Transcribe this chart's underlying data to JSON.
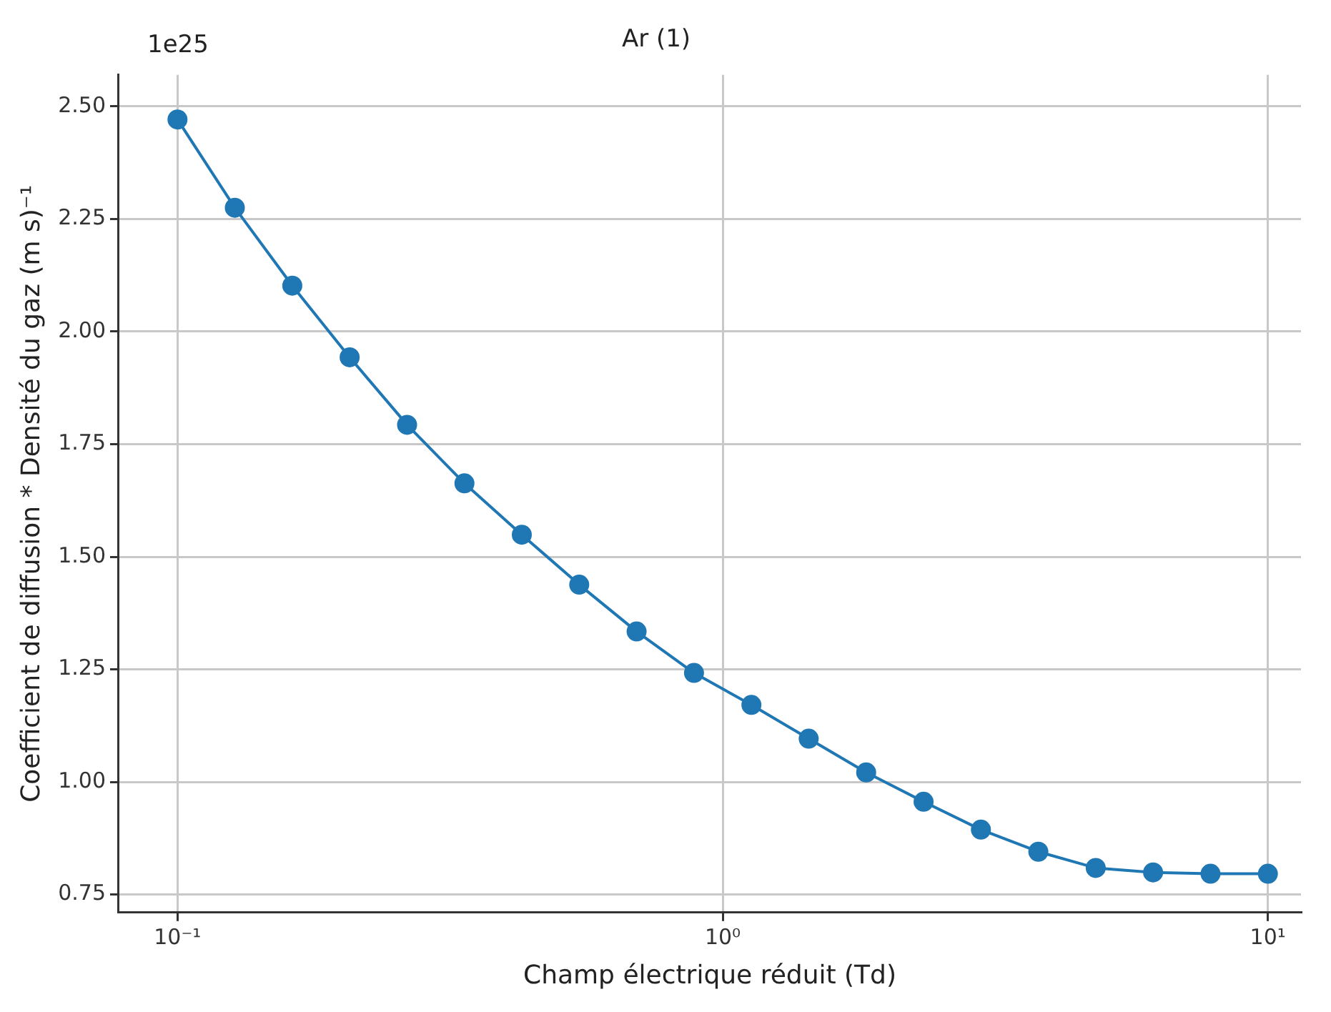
{
  "chart_data": {
    "type": "line",
    "title": "Ar (1)",
    "xlabel": "Champ électrique réduit (Td)",
    "ylabel": "Coefficient de diffusion * Densité du gaz (m s)⁻¹",
    "annotations": [
      "1e25"
    ],
    "log": "x",
    "x": [
      0.1,
      0.1274,
      0.1624,
      0.2069,
      0.2637,
      0.336,
      0.4281,
      0.5456,
      0.6952,
      0.8859,
      1.129,
      1.438,
      1.833,
      2.336,
      2.976,
      3.793,
      4.833,
      6.158,
      7.848,
      10
    ],
    "series": [
      {
        "color": "#1f77b4",
        "values": [
          2.471,
          2.275,
          2.102,
          1.943,
          1.793,
          1.663,
          1.549,
          1.438,
          1.334,
          1.242,
          1.171,
          1.096,
          1.021,
          0.956,
          0.894,
          0.845,
          0.809,
          0.799,
          0.796,
          0.796
        ]
      }
    ],
    "xlim": [
      0.078,
      11.5
    ],
    "ylim": [
      0.71,
      2.57
    ],
    "xticks": [
      {
        "value": 0.1,
        "label": "10⁻¹"
      },
      {
        "value": 1,
        "label": "10⁰"
      },
      {
        "value": 10,
        "label": "10¹"
      }
    ],
    "yticks": [
      {
        "value": 0.75,
        "label": "0.75"
      },
      {
        "value": 1,
        "label": "1.00"
      },
      {
        "value": 1.25,
        "label": "1.25"
      },
      {
        "value": 1.5,
        "label": "1.50"
      },
      {
        "value": 1.75,
        "label": "1.75"
      },
      {
        "value": 2,
        "label": "2.00"
      },
      {
        "value": 2.25,
        "label": "2.25"
      },
      {
        "value": 2.5,
        "label": "2.50"
      }
    ],
    "grid": true,
    "legend": false,
    "marker": "circle",
    "line_style": "solid"
  }
}
